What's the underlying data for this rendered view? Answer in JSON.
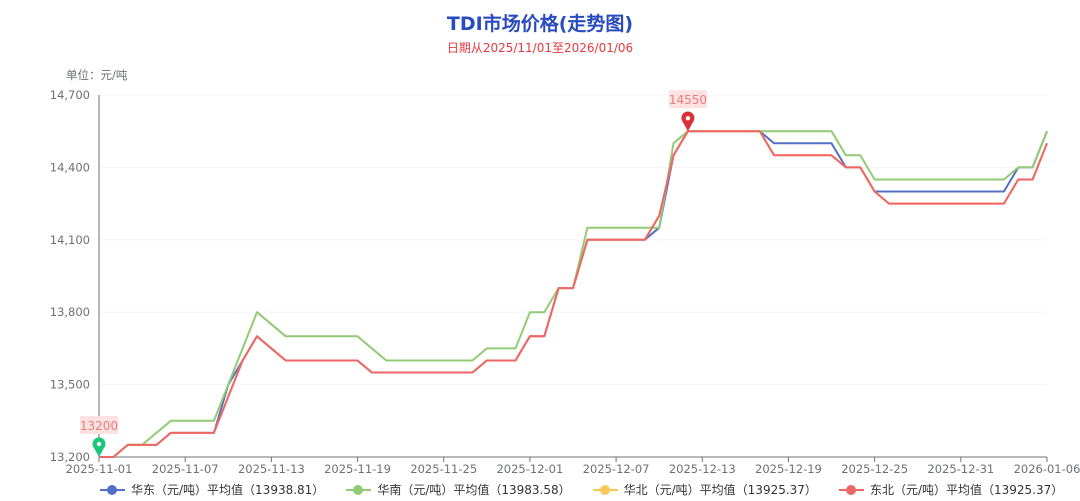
{
  "chart_data": {
    "type": "line",
    "title": "TDI市场价格(走势图)",
    "subtitle": "日期从2025/11/01至2026/01/06",
    "ylabel": "单位：元/吨",
    "xlabel": "",
    "xlim": [
      "2025-11-01",
      "2026-01-06"
    ],
    "ylim": [
      13200,
      14700
    ],
    "x_ticks": [
      "2025-11-01",
      "2025-11-07",
      "2025-11-13",
      "2025-11-19",
      "2025-11-25",
      "2025-12-01",
      "2025-12-07",
      "2025-12-13",
      "2025-12-19",
      "2025-12-25",
      "2025-12-31",
      "2026-01-06"
    ],
    "y_ticks": [
      "13,200",
      "13,500",
      "13,800",
      "14,100",
      "14,400",
      "14,700"
    ],
    "grid": "horizontal",
    "legend_position": "bottom",
    "series": [
      {
        "name": "华东（元/吨）平均值（13938.81）",
        "color": "#5470c6",
        "points": [
          [
            "2025-11-01",
            13200
          ],
          [
            "2025-11-02",
            13200
          ],
          [
            "2025-11-03",
            13250
          ],
          [
            "2025-11-05",
            13250
          ],
          [
            "2025-11-06",
            13300
          ],
          [
            "2025-11-09",
            13300
          ],
          [
            "2025-11-10",
            13500
          ],
          [
            "2025-11-11",
            13600
          ],
          [
            "2025-11-12",
            13700
          ],
          [
            "2025-11-14",
            13600
          ],
          [
            "2025-11-19",
            13600
          ],
          [
            "2025-11-20",
            13550
          ],
          [
            "2025-11-27",
            13550
          ],
          [
            "2025-11-28",
            13600
          ],
          [
            "2025-11-30",
            13600
          ],
          [
            "2025-12-01",
            13700
          ],
          [
            "2025-12-02",
            13700
          ],
          [
            "2025-12-03",
            13900
          ],
          [
            "2025-12-04",
            13900
          ],
          [
            "2025-12-05",
            14100
          ],
          [
            "2025-12-09",
            14100
          ],
          [
            "2025-12-10",
            14150
          ],
          [
            "2025-12-11",
            14450
          ],
          [
            "2025-12-12",
            14550
          ],
          [
            "2025-12-17",
            14550
          ],
          [
            "2025-12-18",
            14500
          ],
          [
            "2025-12-22",
            14500
          ],
          [
            "2025-12-23",
            14400
          ],
          [
            "2025-12-24",
            14400
          ],
          [
            "2025-12-25",
            14300
          ],
          [
            "2026-01-03",
            14300
          ],
          [
            "2026-01-04",
            14400
          ],
          [
            "2026-01-05",
            14400
          ],
          [
            "2026-01-06",
            14550
          ]
        ]
      },
      {
        "name": "华南（元/吨）平均值（13983.58）",
        "color": "#91cc75",
        "points": [
          [
            "2025-11-01",
            13200
          ],
          [
            "2025-11-02",
            13200
          ],
          [
            "2025-11-03",
            13250
          ],
          [
            "2025-11-04",
            13250
          ],
          [
            "2025-11-06",
            13350
          ],
          [
            "2025-11-09",
            13350
          ],
          [
            "2025-11-12",
            13800
          ],
          [
            "2025-11-14",
            13700
          ],
          [
            "2025-11-19",
            13700
          ],
          [
            "2025-11-21",
            13600
          ],
          [
            "2025-11-27",
            13600
          ],
          [
            "2025-11-28",
            13650
          ],
          [
            "2025-11-30",
            13650
          ],
          [
            "2025-12-01",
            13800
          ],
          [
            "2025-12-02",
            13800
          ],
          [
            "2025-12-03",
            13900
          ],
          [
            "2025-12-04",
            13900
          ],
          [
            "2025-12-05",
            14150
          ],
          [
            "2025-12-10",
            14150
          ],
          [
            "2025-12-11",
            14500
          ],
          [
            "2025-12-12",
            14550
          ],
          [
            "2025-12-22",
            14550
          ],
          [
            "2025-12-23",
            14450
          ],
          [
            "2025-12-24",
            14450
          ],
          [
            "2025-12-25",
            14350
          ],
          [
            "2026-01-03",
            14350
          ],
          [
            "2026-01-04",
            14400
          ],
          [
            "2026-01-05",
            14400
          ],
          [
            "2026-01-06",
            14550
          ]
        ]
      },
      {
        "name": "华北（元/吨）平均值（13925.37）",
        "color": "#fac858",
        "points": [
          [
            "2025-11-01",
            13200
          ],
          [
            "2025-11-02",
            13200
          ],
          [
            "2025-11-03",
            13250
          ],
          [
            "2025-11-05",
            13250
          ],
          [
            "2025-11-06",
            13300
          ],
          [
            "2025-11-09",
            13300
          ],
          [
            "2025-11-11",
            13600
          ],
          [
            "2025-11-12",
            13700
          ],
          [
            "2025-11-14",
            13600
          ],
          [
            "2025-11-19",
            13600
          ],
          [
            "2025-11-20",
            13550
          ],
          [
            "2025-11-27",
            13550
          ],
          [
            "2025-11-28",
            13600
          ],
          [
            "2025-11-30",
            13600
          ],
          [
            "2025-12-01",
            13700
          ],
          [
            "2025-12-02",
            13700
          ],
          [
            "2025-12-03",
            13900
          ],
          [
            "2025-12-04",
            13900
          ],
          [
            "2025-12-05",
            14100
          ],
          [
            "2025-12-09",
            14100
          ],
          [
            "2025-12-10",
            14200
          ],
          [
            "2025-12-11",
            14450
          ],
          [
            "2025-12-12",
            14550
          ],
          [
            "2025-12-17",
            14550
          ],
          [
            "2025-12-18",
            14450
          ],
          [
            "2025-12-22",
            14450
          ],
          [
            "2025-12-23",
            14400
          ],
          [
            "2025-12-24",
            14400
          ],
          [
            "2025-12-25",
            14300
          ],
          [
            "2025-12-26",
            14250
          ],
          [
            "2026-01-03",
            14250
          ],
          [
            "2026-01-04",
            14350
          ],
          [
            "2026-01-05",
            14350
          ],
          [
            "2026-01-06",
            14500
          ]
        ]
      },
      {
        "name": "东北（元/吨）平均值（13925.37）",
        "color": "#ee6666",
        "points": [
          [
            "2025-11-01",
            13200
          ],
          [
            "2025-11-02",
            13200
          ],
          [
            "2025-11-03",
            13250
          ],
          [
            "2025-11-05",
            13250
          ],
          [
            "2025-11-06",
            13300
          ],
          [
            "2025-11-09",
            13300
          ],
          [
            "2025-11-11",
            13600
          ],
          [
            "2025-11-12",
            13700
          ],
          [
            "2025-11-14",
            13600
          ],
          [
            "2025-11-19",
            13600
          ],
          [
            "2025-11-20",
            13550
          ],
          [
            "2025-11-27",
            13550
          ],
          [
            "2025-11-28",
            13600
          ],
          [
            "2025-11-30",
            13600
          ],
          [
            "2025-12-01",
            13700
          ],
          [
            "2025-12-02",
            13700
          ],
          [
            "2025-12-03",
            13900
          ],
          [
            "2025-12-04",
            13900
          ],
          [
            "2025-12-05",
            14100
          ],
          [
            "2025-12-09",
            14100
          ],
          [
            "2025-12-10",
            14200
          ],
          [
            "2025-12-11",
            14450
          ],
          [
            "2025-12-12",
            14550
          ],
          [
            "2025-12-17",
            14550
          ],
          [
            "2025-12-18",
            14450
          ],
          [
            "2025-12-22",
            14450
          ],
          [
            "2025-12-23",
            14400
          ],
          [
            "2025-12-24",
            14400
          ],
          [
            "2025-12-25",
            14300
          ],
          [
            "2025-12-26",
            14250
          ],
          [
            "2026-01-03",
            14250
          ],
          [
            "2026-01-04",
            14350
          ],
          [
            "2026-01-05",
            14350
          ],
          [
            "2026-01-06",
            14500
          ]
        ]
      }
    ],
    "annotations": [
      {
        "type": "min",
        "label": "13200",
        "x": "2025-11-01",
        "y": 13200,
        "color": "#1cc67a"
      },
      {
        "type": "max",
        "label": "14550",
        "x": "2025-12-12",
        "y": 14550,
        "color": "#d9303a"
      }
    ]
  }
}
